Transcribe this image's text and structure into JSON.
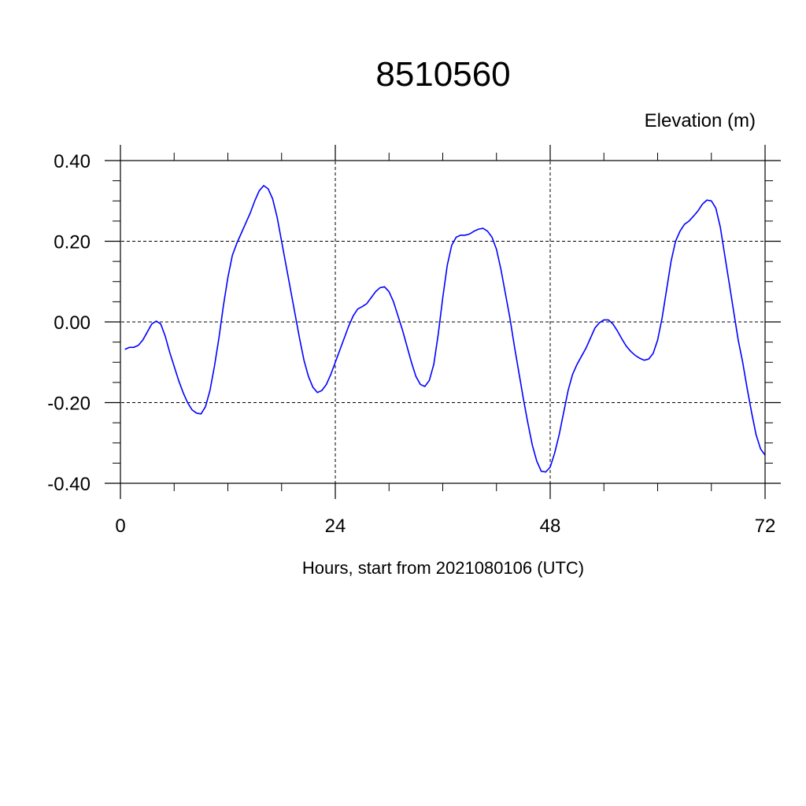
{
  "chart_data": {
    "type": "line",
    "title": "8510560",
    "ylabel": "Elevation (m)",
    "xlabel": "Hours, start from 2021080106 (UTC)",
    "xlim": [
      0,
      72
    ],
    "ylim": [
      -0.4,
      0.4
    ],
    "x_ticks": [
      0,
      24,
      48,
      72
    ],
    "x_tick_labels": [
      "0",
      "24",
      "48",
      "72"
    ],
    "y_ticks": [
      -0.4,
      -0.2,
      0.0,
      0.2,
      0.4
    ],
    "y_tick_labels": [
      "-0.40",
      "-0.20",
      "0.00",
      "0.20",
      "0.40"
    ],
    "grid": true,
    "line_color": "#0000ff",
    "series": [
      {
        "x": [
          0.5,
          1,
          1.5,
          2,
          2.5,
          3,
          3.5,
          4,
          4.5,
          5,
          5.5,
          6,
          6.5,
          7,
          7.5,
          8,
          8.5,
          9,
          9.5,
          10,
          10.5,
          11,
          11.5,
          12,
          12.5,
          13,
          13.5,
          14,
          14.5,
          15,
          15.5,
          16,
          16.5,
          17,
          17.5,
          18,
          18.5,
          19,
          19.5,
          20,
          20.5,
          21,
          21.5,
          22,
          22.5,
          23,
          23.5,
          24,
          24.5,
          25,
          25.5,
          26,
          26.5,
          27,
          27.5,
          28,
          28.5,
          29,
          29.5,
          30,
          30.5,
          31,
          31.5,
          32,
          32.5,
          33,
          33.5,
          34,
          34.5,
          35,
          35.5,
          36,
          36.5,
          37,
          37.5,
          38,
          38.5,
          39,
          39.5,
          40,
          40.5,
          41,
          41.5,
          42,
          42.5,
          43,
          43.5,
          44,
          44.5,
          45,
          45.5,
          46,
          46.5,
          47,
          47.5,
          48,
          48.5,
          49,
          49.5,
          50,
          50.5,
          51,
          51.5,
          52,
          52.5,
          53,
          53.5,
          54,
          54.5,
          55,
          55.5,
          56,
          56.5,
          57,
          57.5,
          58,
          58.5,
          59,
          59.5,
          60,
          60.5,
          61,
          61.5,
          62,
          62.5,
          63,
          63.5,
          64,
          64.5,
          65,
          65.5,
          66,
          66.5,
          67,
          67.5,
          68,
          68.5,
          69,
          69.5,
          70,
          70.5,
          71,
          71.5,
          72
        ],
        "y": [
          -0.068,
          -0.063,
          -0.063,
          -0.058,
          -0.045,
          -0.025,
          -0.005,
          0.002,
          -0.005,
          -0.035,
          -0.075,
          -0.11,
          -0.145,
          -0.175,
          -0.2,
          -0.218,
          -0.226,
          -0.228,
          -0.21,
          -0.17,
          -0.11,
          -0.04,
          0.04,
          0.11,
          0.165,
          0.195,
          0.22,
          0.245,
          0.27,
          0.3,
          0.325,
          0.338,
          0.33,
          0.305,
          0.26,
          0.2,
          0.14,
          0.08,
          0.02,
          -0.04,
          -0.095,
          -0.135,
          -0.162,
          -0.175,
          -0.17,
          -0.155,
          -0.13,
          -0.1,
          -0.07,
          -0.04,
          -0.01,
          0.015,
          0.032,
          0.038,
          0.045,
          0.06,
          0.075,
          0.085,
          0.087,
          0.075,
          0.05,
          0.015,
          -0.02,
          -0.06,
          -0.1,
          -0.135,
          -0.155,
          -0.16,
          -0.145,
          -0.105,
          -0.03,
          0.06,
          0.14,
          0.19,
          0.21,
          0.215,
          0.215,
          0.218,
          0.225,
          0.23,
          0.232,
          0.225,
          0.21,
          0.18,
          0.13,
          0.07,
          0.01,
          -0.06,
          -0.125,
          -0.19,
          -0.25,
          -0.305,
          -0.345,
          -0.37,
          -0.372,
          -0.36,
          -0.325,
          -0.28,
          -0.225,
          -0.17,
          -0.13,
          -0.105,
          -0.085,
          -0.065,
          -0.04,
          -0.015,
          -0.002,
          0.005,
          0.005,
          -0.005,
          -0.022,
          -0.042,
          -0.06,
          -0.073,
          -0.083,
          -0.09,
          -0.095,
          -0.092,
          -0.078,
          -0.045,
          0.01,
          0.08,
          0.15,
          0.2,
          0.225,
          0.242,
          0.25,
          0.262,
          0.275,
          0.292,
          0.302,
          0.3,
          0.282,
          0.235,
          0.165,
          0.095,
          0.025,
          -0.045,
          -0.1,
          -0.165,
          -0.225,
          -0.28,
          -0.315,
          -0.33
        ]
      }
    ]
  }
}
